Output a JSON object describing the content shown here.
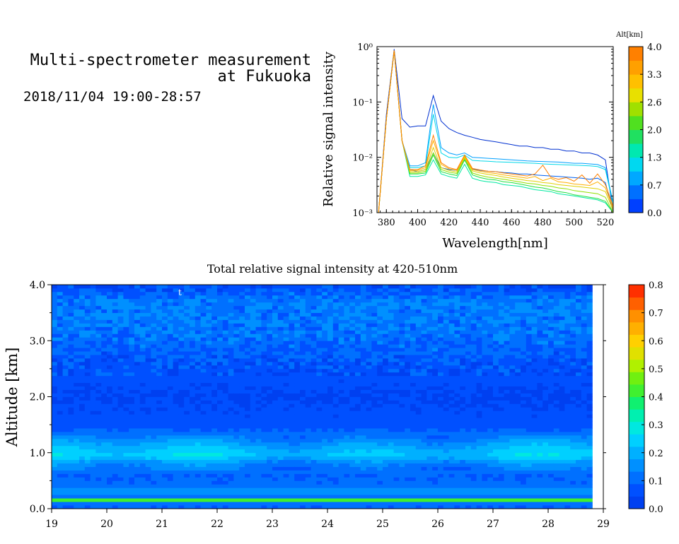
{
  "header": {
    "title_line1": "Multi-spectrometer measurement",
    "title_line2": "at Fukuoka",
    "timespan": "2018/11/04 19:00-28:57"
  },
  "chart_data": [
    {
      "type": "line",
      "ylabel": "Relative signal intensity",
      "xlabel": "Wavelength[nm]",
      "x_ticks": [
        380,
        400,
        420,
        440,
        460,
        480,
        500,
        520
      ],
      "xlim": [
        374,
        525
      ],
      "y_scale": "log",
      "ylim": [
        0.001,
        1
      ],
      "y_tick_labels": [
        "10⁰",
        "10⁻¹",
        "10⁻²",
        "10⁻³"
      ],
      "colorbar": {
        "label": "Alt[km]",
        "tick_labels": [
          "4.0",
          "3.3",
          "2.6",
          "2.0",
          "1.3",
          "0.7",
          "0.0"
        ],
        "colors": [
          "#0040ff",
          "#0070ff",
          "#00a8ff",
          "#00d8f0",
          "#00e8b0",
          "#20e060",
          "#50e020",
          "#a0e000",
          "#e8e000",
          "#ffc000",
          "#ffa000",
          "#ff8000"
        ]
      },
      "x": [
        375,
        380,
        385,
        390,
        395,
        400,
        405,
        410,
        415,
        420,
        425,
        430,
        435,
        440,
        445,
        450,
        455,
        460,
        465,
        470,
        475,
        480,
        485,
        490,
        495,
        500,
        505,
        510,
        515,
        520,
        525
      ],
      "series": [
        {
          "color": "#0030d0",
          "values": [
            0.001,
            0.06,
            0.9,
            0.05,
            0.035,
            0.037,
            0.037,
            0.13,
            0.045,
            0.033,
            0.028,
            0.025,
            0.023,
            0.021,
            0.02,
            0.019,
            0.018,
            0.017,
            0.016,
            0.016,
            0.015,
            0.015,
            0.014,
            0.014,
            0.013,
            0.013,
            0.012,
            0.012,
            0.011,
            0.009,
            0.001
          ]
        },
        {
          "color": "#0060f0",
          "values": [
            0.001,
            0.05,
            0.85,
            0.02,
            0.006,
            0.0055,
            0.006,
            0.012,
            0.0065,
            0.006,
            0.0058,
            0.0088,
            0.0062,
            0.0058,
            0.0056,
            0.0055,
            0.0053,
            0.0052,
            0.005,
            0.005,
            0.0048,
            0.0047,
            0.0046,
            0.0045,
            0.0044,
            0.0043,
            0.0042,
            0.004,
            0.0042,
            0.0035,
            0.001
          ]
        },
        {
          "color": "#00a0ff",
          "values": [
            0.001,
            0.05,
            0.85,
            0.02,
            0.007,
            0.007,
            0.008,
            0.09,
            0.015,
            0.012,
            0.011,
            0.012,
            0.01,
            0.0098,
            0.0096,
            0.0094,
            0.0092,
            0.009,
            0.0088,
            0.0086,
            0.0085,
            0.0084,
            0.0083,
            0.0082,
            0.008,
            0.0078,
            0.0078,
            0.0076,
            0.0074,
            0.0065,
            0.0015
          ]
        },
        {
          "color": "#00d8e8",
          "values": [
            0.001,
            0.05,
            0.85,
            0.02,
            0.0065,
            0.0065,
            0.007,
            0.06,
            0.012,
            0.01,
            0.0098,
            0.011,
            0.0088,
            0.0086,
            0.0085,
            0.0083,
            0.0082,
            0.0081,
            0.008,
            0.0079,
            0.0078,
            0.0076,
            0.0075,
            0.0074,
            0.0073,
            0.0072,
            0.0071,
            0.007,
            0.0068,
            0.006,
            0.0014
          ]
        },
        {
          "color": "#00e8a0",
          "values": [
            0.001,
            0.05,
            0.85,
            0.02,
            0.0045,
            0.0045,
            0.0048,
            0.009,
            0.005,
            0.0045,
            0.0042,
            0.0075,
            0.0042,
            0.0038,
            0.0036,
            0.0035,
            0.0032,
            0.0031,
            0.003,
            0.0028,
            0.0026,
            0.0025,
            0.0024,
            0.0022,
            0.0021,
            0.002,
            0.0019,
            0.0018,
            0.0017,
            0.0015,
            0.001
          ]
        },
        {
          "color": "#20e040",
          "values": [
            0.001,
            0.05,
            0.85,
            0.02,
            0.005,
            0.005,
            0.0052,
            0.011,
            0.0055,
            0.005,
            0.0047,
            0.009,
            0.0048,
            0.0043,
            0.004,
            0.0039,
            0.0036,
            0.0035,
            0.0033,
            0.0031,
            0.0029,
            0.0028,
            0.0026,
            0.0024,
            0.0023,
            0.0021,
            0.002,
            0.0019,
            0.0018,
            0.0016,
            0.001
          ]
        },
        {
          "color": "#90e000",
          "values": [
            0.001,
            0.05,
            0.85,
            0.02,
            0.0052,
            0.0052,
            0.0056,
            0.012,
            0.006,
            0.0054,
            0.0051,
            0.0095,
            0.0052,
            0.0047,
            0.0044,
            0.0042,
            0.004,
            0.0038,
            0.0036,
            0.0034,
            0.0033,
            0.0031,
            0.003,
            0.0028,
            0.0027,
            0.0025,
            0.0024,
            0.0023,
            0.0022,
            0.0019,
            0.001
          ]
        },
        {
          "color": "#e0d000",
          "values": [
            0.001,
            0.05,
            0.85,
            0.02,
            0.0055,
            0.0055,
            0.006,
            0.015,
            0.0065,
            0.0058,
            0.0054,
            0.01,
            0.0057,
            0.0052,
            0.0049,
            0.0047,
            0.0044,
            0.0042,
            0.004,
            0.0038,
            0.0037,
            0.0035,
            0.0034,
            0.0032,
            0.0031,
            0.003,
            0.0029,
            0.0028,
            0.0027,
            0.0024,
            0.0011
          ]
        },
        {
          "color": "#ffb000",
          "values": [
            0.001,
            0.05,
            0.85,
            0.02,
            0.0058,
            0.0058,
            0.0065,
            0.02,
            0.0075,
            0.0062,
            0.0058,
            0.0105,
            0.006,
            0.0056,
            0.0053,
            0.0051,
            0.0048,
            0.0046,
            0.0044,
            0.0042,
            0.0045,
            0.0038,
            0.0042,
            0.0036,
            0.0035,
            0.0033,
            0.0032,
            0.0031,
            0.0036,
            0.0028,
            0.0012
          ]
        },
        {
          "color": "#ff8000",
          "values": [
            0.001,
            0.05,
            0.85,
            0.02,
            0.006,
            0.006,
            0.007,
            0.025,
            0.008,
            0.0065,
            0.006,
            0.011,
            0.0063,
            0.0059,
            0.0056,
            0.0055,
            0.0052,
            0.005,
            0.0048,
            0.0046,
            0.005,
            0.0072,
            0.0044,
            0.004,
            0.0043,
            0.0037,
            0.0048,
            0.0034,
            0.005,
            0.0032,
            0.0013
          ]
        }
      ]
    },
    {
      "type": "heatmap",
      "title": "Total relative signal intensity at 420-510nm",
      "ylabel": "Altitude [km]",
      "x_ticks": [
        19,
        20,
        21,
        22,
        23,
        24,
        25,
        26,
        27,
        28,
        29
      ],
      "xlim": [
        19,
        29
      ],
      "data_x_range": [
        19,
        28.8
      ],
      "y_ticks": [
        "0.0",
        "1.0",
        "2.0",
        "3.0",
        "4.0"
      ],
      "ylim": [
        0,
        4
      ],
      "annotation": "t",
      "colorbar": {
        "tick_labels": [
          "0.8",
          "0.7",
          "0.6",
          "0.5",
          "0.4",
          "0.3",
          "0.2",
          "0.1",
          "0.0"
        ],
        "colors": [
          "#0040f0",
          "#0050ff",
          "#0070ff",
          "#0090ff",
          "#00b0ff",
          "#00d0ff",
          "#00e8e0",
          "#00f0b0",
          "#10f070",
          "#40f030",
          "#70f010",
          "#b0f000",
          "#e0e000",
          "#ffd000",
          "#ffb000",
          "#ff9000",
          "#ff6000",
          "#ff3000"
        ]
      },
      "profile": [
        {
          "alt": 0.0,
          "value": 0.08
        },
        {
          "alt": 0.1,
          "value": 0.12
        },
        {
          "alt": 0.16,
          "value": 0.45
        },
        {
          "alt": 0.22,
          "value": 0.1
        },
        {
          "alt": 0.3,
          "value": 0.18
        },
        {
          "alt": 0.4,
          "value": 0.1
        },
        {
          "alt": 0.6,
          "value": 0.09
        },
        {
          "alt": 0.8,
          "value": 0.14
        },
        {
          "alt": 0.95,
          "value": 0.24
        },
        {
          "alt": 1.1,
          "value": 0.2
        },
        {
          "alt": 1.3,
          "value": 0.12
        },
        {
          "alt": 1.5,
          "value": 0.06
        },
        {
          "alt": 2.0,
          "value": 0.04
        },
        {
          "alt": 2.6,
          "value": 0.07
        },
        {
          "alt": 3.2,
          "value": 0.12
        },
        {
          "alt": 3.7,
          "value": 0.13
        },
        {
          "alt": 4.0,
          "value": 0.05
        }
      ]
    }
  ]
}
